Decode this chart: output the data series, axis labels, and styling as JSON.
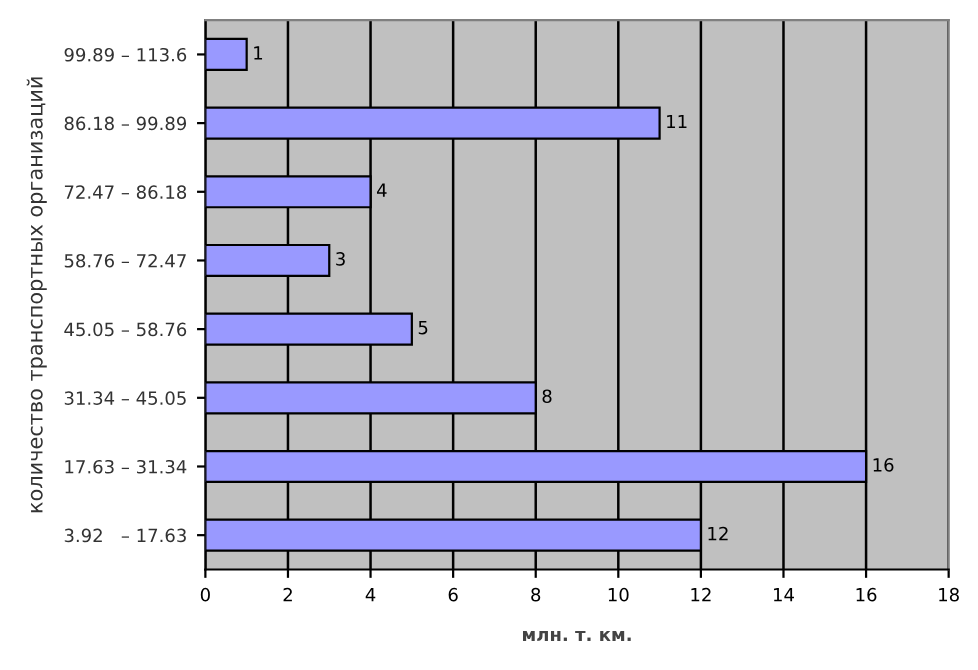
{
  "chart_data": {
    "type": "bar",
    "orientation": "horizontal",
    "categories": [
      "99.89 – 113.6",
      "86.18 – 99.89",
      "72.47 – 86.18",
      "58.76 – 72.47",
      "45.05 – 58.76",
      "31.34 – 45.05",
      "17.63 – 31.34",
      "3.92   – 17.63"
    ],
    "values": [
      1,
      11,
      4,
      3,
      5,
      8,
      16,
      12
    ],
    "color": "#9999ff",
    "xlabel": "млн. т. км.",
    "ylabel": "количество транспортных организаций",
    "xlim": [
      0,
      18
    ],
    "xticks": [
      0,
      2,
      4,
      6,
      8,
      10,
      12,
      14,
      16,
      18
    ],
    "grid": "x",
    "data_labels": true
  }
}
